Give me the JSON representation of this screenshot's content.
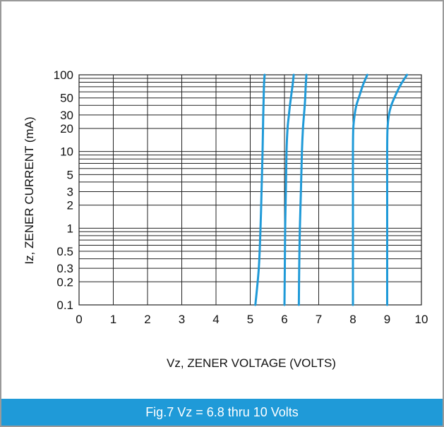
{
  "caption": "Fig.7 Vz = 6.8 thru 10 Volts",
  "colors": {
    "curve": "#1f9ad8",
    "caption_bg": "#1f9ad8",
    "grid": "#222222",
    "frame": "#9a9a9a"
  },
  "chart_data": {
    "type": "line",
    "title": "",
    "xlabel": "Vz, ZENER VOLTAGE (VOLTS)",
    "ylabel": "Iz, ZENER CURRENT (mA)",
    "xlim": [
      0,
      10
    ],
    "ylim": [
      0.1,
      100
    ],
    "yscale": "log",
    "grid": true,
    "x_ticks": [
      "0",
      "1",
      "2",
      "3",
      "4",
      "5",
      "6",
      "7",
      "8",
      "9",
      "10"
    ],
    "y_ticks": [
      {
        "value": 0.1,
        "label": "0.1"
      },
      {
        "value": 0.2,
        "label": "0.2"
      },
      {
        "value": 0.3,
        "label": "0.3"
      },
      {
        "value": 0.5,
        "label": "0.5"
      },
      {
        "value": 1,
        "label": "1"
      },
      {
        "value": 2,
        "label": "2"
      },
      {
        "value": 3,
        "label": "3"
      },
      {
        "value": 5,
        "label": "5"
      },
      {
        "value": 10,
        "label": "10"
      },
      {
        "value": 20,
        "label": "20"
      },
      {
        "value": 30,
        "label": "30"
      },
      {
        "value": 50,
        "label": "50"
      },
      {
        "value": 100,
        "label": "100"
      }
    ],
    "y_gridlines": [
      0.1,
      0.2,
      0.3,
      0.4,
      0.5,
      0.6,
      0.7,
      0.8,
      0.9,
      1,
      2,
      3,
      4,
      5,
      6,
      7,
      8,
      9,
      10,
      20,
      30,
      40,
      50,
      60,
      70,
      80,
      90,
      100
    ],
    "series": [
      {
        "x": [
          5.15,
          5.25,
          5.3,
          5.33,
          5.36,
          5.38,
          5.4,
          5.42
        ],
        "y": [
          0.1,
          0.3,
          1,
          3,
          10,
          30,
          70,
          100
        ]
      },
      {
        "x": [
          6.0,
          6.01,
          6.02,
          6.04,
          6.06,
          6.09,
          6.13,
          6.16,
          6.2,
          6.24,
          6.27
        ],
        "y": [
          0.1,
          0.3,
          1,
          3,
          10,
          20,
          30,
          40,
          55,
          75,
          100
        ]
      },
      {
        "x": [
          6.42,
          6.43,
          6.45,
          6.48,
          6.51,
          6.54,
          6.57,
          6.6,
          6.62,
          6.64
        ],
        "y": [
          0.1,
          0.3,
          1,
          3,
          10,
          20,
          30,
          45,
          70,
          100
        ]
      },
      {
        "x": [
          8.0,
          8.0,
          8.0,
          8.0,
          8.0,
          8.01,
          8.05,
          8.1,
          8.2,
          8.3,
          8.42
        ],
        "y": [
          0.1,
          0.3,
          1,
          3,
          10,
          20,
          30,
          40,
          55,
          75,
          100
        ]
      },
      {
        "x": [
          9.0,
          9.0,
          9.0,
          9.0,
          9.0,
          9.01,
          9.05,
          9.12,
          9.25,
          9.4,
          9.58
        ],
        "y": [
          0.1,
          0.3,
          1,
          3,
          10,
          20,
          30,
          40,
          55,
          75,
          100
        ]
      }
    ]
  }
}
